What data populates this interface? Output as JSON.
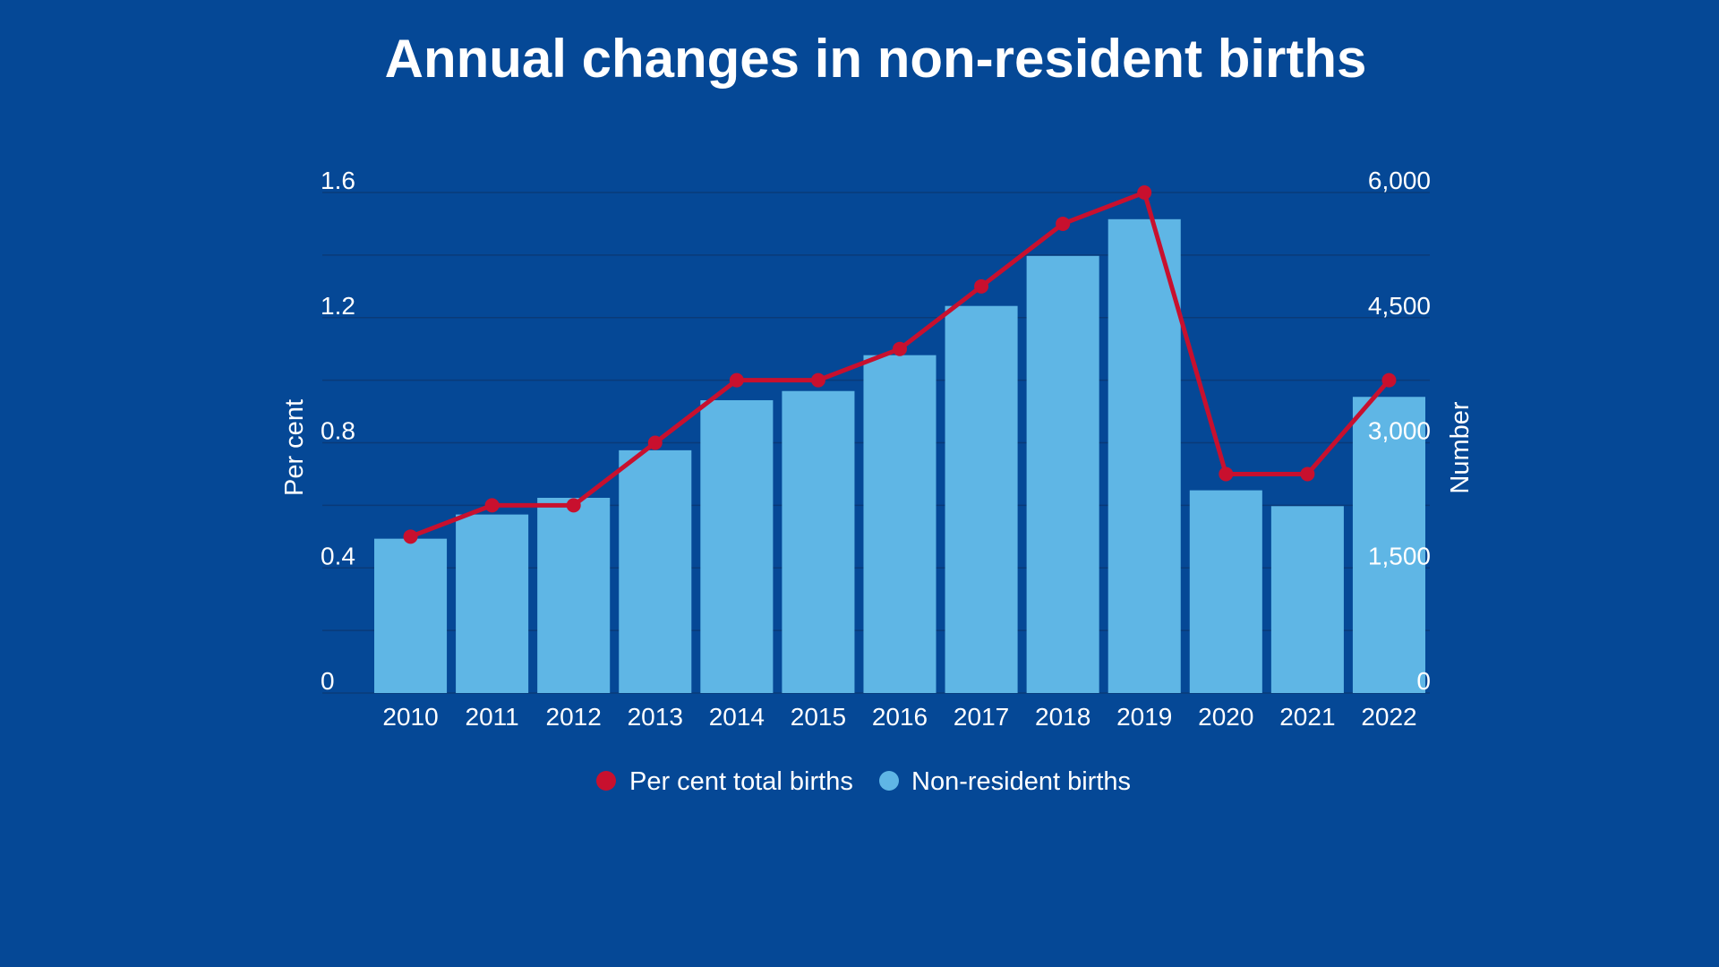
{
  "chart_data": {
    "type": "bar",
    "title": "Annual changes in non-resident births",
    "categories": [
      "2010",
      "2011",
      "2012",
      "2013",
      "2014",
      "2015",
      "2016",
      "2017",
      "2018",
      "2019",
      "2020",
      "2021",
      "2022"
    ],
    "series": [
      {
        "name": "Non-resident births",
        "type": "bar",
        "axis": "right",
        "color": "#5fb6e5",
        "values": [
          1850,
          2140,
          2340,
          2910,
          3510,
          3620,
          4050,
          4640,
          5240,
          5680,
          2430,
          2240,
          3550
        ]
      },
      {
        "name": "Per cent total births",
        "type": "line",
        "axis": "left",
        "color": "#c8102e",
        "values": [
          0.5,
          0.6,
          0.6,
          0.8,
          1.0,
          1.0,
          1.1,
          1.3,
          1.5,
          1.6,
          0.7,
          0.7,
          1.0
        ]
      }
    ],
    "y_left": {
      "label": "Per cent",
      "ticks": [
        "0",
        "0.4",
        "0.8",
        "1.2",
        "1.6"
      ],
      "range": [
        0,
        1.6
      ]
    },
    "y_right": {
      "label": "Number",
      "ticks": [
        "0",
        "1,500",
        "3,000",
        "4,500",
        "6,000"
      ],
      "range": [
        0,
        6000
      ]
    },
    "grid": true,
    "legend": "bottom",
    "colors": {
      "background": "#054896",
      "gridline": "#0a3a78",
      "text": "#ffffff"
    }
  }
}
